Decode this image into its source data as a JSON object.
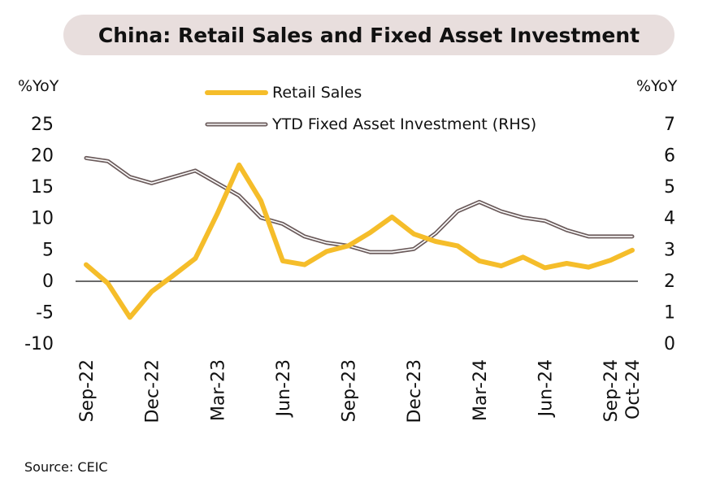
{
  "chart_data": {
    "type": "line",
    "title": "China: Retail Sales and Fixed Asset Investment",
    "left_axis": {
      "unit": "%YoY",
      "ylim": [
        -10,
        25
      ],
      "ticks": [
        25,
        20,
        15,
        10,
        5,
        0,
        -5,
        -10
      ]
    },
    "right_axis": {
      "unit": "%YoY",
      "ylim": [
        0,
        7
      ],
      "ticks": [
        7,
        6,
        5,
        4,
        3,
        2,
        1,
        0
      ]
    },
    "x_tick_labels": [
      "Sep-22",
      "Dec-22",
      "Mar-23",
      "Jun-23",
      "Sep-23",
      "Dec-23",
      "Mar-24",
      "Jun-24",
      "Sep-24",
      "Oct-24"
    ],
    "x": [
      "Sep-22",
      "Oct-22",
      "Nov-22",
      "Dec-22",
      "Jan-23",
      "Feb-23",
      "Mar-23",
      "Apr-23",
      "May-23",
      "Jun-23",
      "Jul-23",
      "Aug-23",
      "Sep-23",
      "Oct-23",
      "Nov-23",
      "Dec-23",
      "Jan-24",
      "Feb-24",
      "Mar-24",
      "Apr-24",
      "May-24",
      "Jun-24",
      "Jul-24",
      "Aug-24",
      "Sep-24",
      "Oct-24"
    ],
    "series": [
      {
        "name": "Retail Sales",
        "axis": "left",
        "color": "#f5bd2a",
        "values": [
          2.5,
          -0.5,
          -5.9,
          -1.8,
          0.8,
          3.5,
          10.6,
          18.4,
          12.7,
          3.1,
          2.5,
          4.6,
          5.5,
          7.6,
          10.1,
          7.4,
          6.2,
          5.5,
          3.1,
          2.3,
          3.7,
          2.0,
          2.7,
          2.1,
          3.2,
          4.8
        ]
      },
      {
        "name": "YTD Fixed Asset Investment (RHS)",
        "axis": "right",
        "color": "#6b5b5b",
        "values": [
          5.9,
          5.8,
          5.3,
          5.1,
          5.3,
          5.5,
          5.1,
          4.7,
          4.0,
          3.8,
          3.4,
          3.2,
          3.1,
          2.9,
          2.9,
          3.0,
          3.5,
          4.2,
          4.5,
          4.2,
          4.0,
          3.9,
          3.6,
          3.4,
          3.4,
          3.4
        ]
      }
    ],
    "grid": false,
    "legend_placement": "top"
  },
  "source": "Source: CEIC"
}
